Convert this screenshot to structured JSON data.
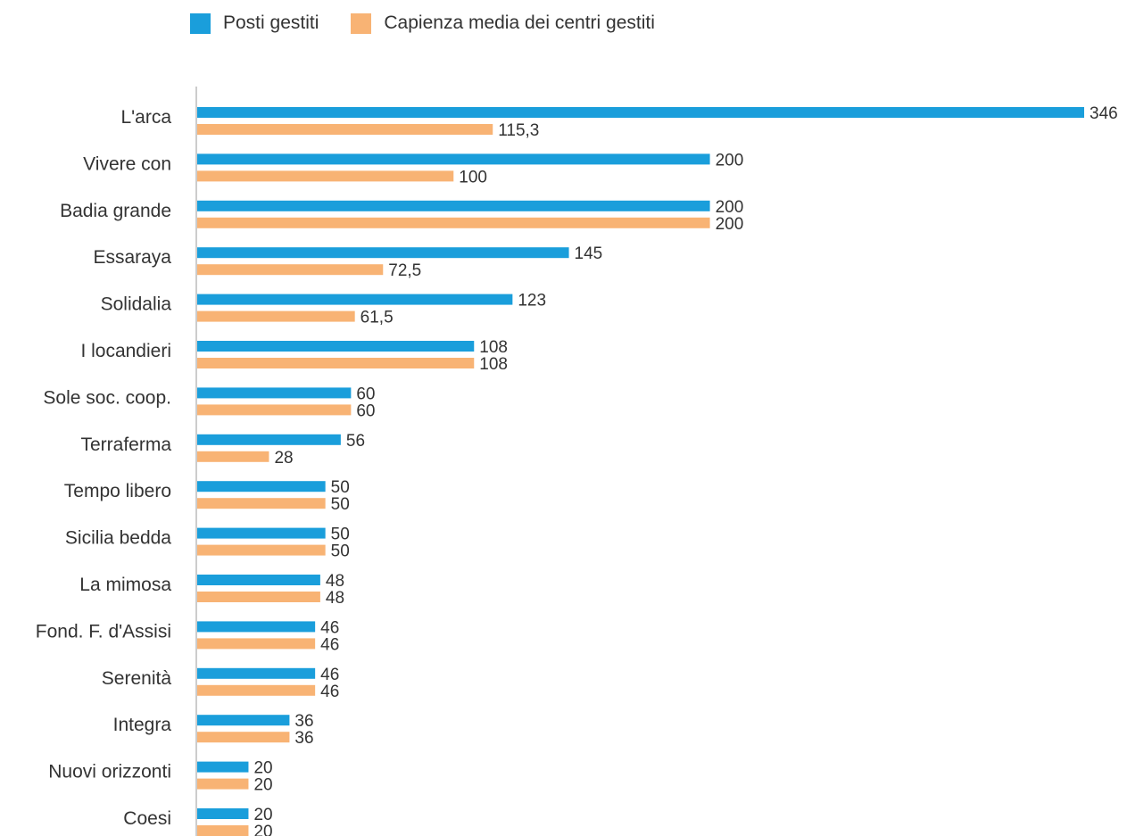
{
  "chart_data": {
    "type": "bar",
    "orientation": "horizontal",
    "title": "",
    "xlabel": "",
    "ylabel": "",
    "legend_position": "top",
    "grid": false,
    "xlim": [
      0,
      346
    ],
    "categories": [
      "L'arca",
      "Vivere con",
      "Badia grande",
      "Essaraya",
      "Solidalia",
      "I locandieri",
      "Sole soc. coop.",
      "Terraferma",
      "Tempo libero",
      "Sicilia bedda",
      "La mimosa",
      "Fond. F. d'Assisi",
      "Serenità",
      "Integra",
      "Nuovi orizzonti",
      "Coesi"
    ],
    "series": [
      {
        "name": "Posti gestiti",
        "color": "#1a9edb",
        "values": [
          346,
          200,
          200,
          145,
          123,
          108,
          60,
          56,
          50,
          50,
          48,
          46,
          46,
          36,
          20,
          20
        ],
        "labels": [
          "346",
          "200",
          "200",
          "145",
          "123",
          "108",
          "60",
          "56",
          "50",
          "50",
          "48",
          "46",
          "46",
          "36",
          "20",
          "20"
        ]
      },
      {
        "name": "Capienza media dei centri gestiti",
        "color": "#f8b374",
        "values": [
          115.3,
          100,
          200,
          72.5,
          61.5,
          108,
          60,
          28,
          50,
          50,
          48,
          46,
          46,
          36,
          20,
          20
        ],
        "labels": [
          "115,3",
          "100",
          "200",
          "72,5",
          "61,5",
          "108",
          "60",
          "28",
          "50",
          "50",
          "48",
          "46",
          "46",
          "36",
          "20",
          "20"
        ]
      }
    ]
  }
}
